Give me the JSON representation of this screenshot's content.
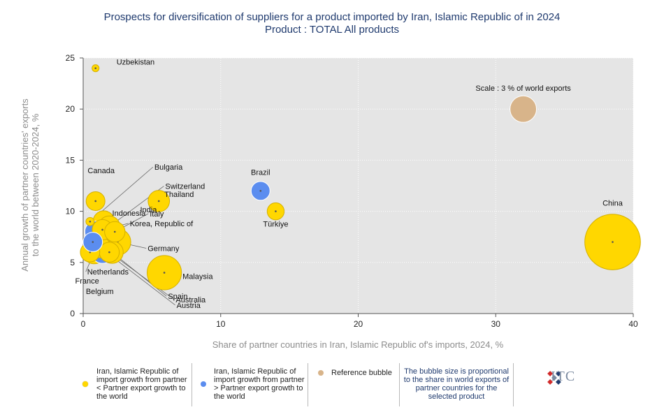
{
  "title": {
    "line1": "Prospects for diversification of suppliers for a product imported by Iran, Islamic Republic of in 2024",
    "line2": "Product : TOTAL All products"
  },
  "chart_data": {
    "type": "scatter",
    "bubble": true,
    "xlabel": "Share of partner countries in Iran, Islamic Republic of's imports, 2024, %",
    "ylabel_line1": "Annual growth of partner countries' exports",
    "ylabel_line2": "to the world between 2020-2024, %",
    "xlim": [
      0,
      40
    ],
    "ylim": [
      0,
      25
    ],
    "x_ticks": [
      0,
      10,
      20,
      30,
      40
    ],
    "y_ticks": [
      0,
      5,
      10,
      15,
      20,
      25
    ],
    "plot_background": "#e5e5e5",
    "grid": true,
    "colors": {
      "yellow": "#ffd700",
      "blue": "#5b8def",
      "reference": "#d8b48a"
    },
    "points": [
      {
        "label": "Uzbekistan",
        "x": 0.9,
        "y": 24,
        "size": 0.05,
        "color": "yellow"
      },
      {
        "label": "China",
        "x": 38.5,
        "y": 7,
        "size": 16,
        "color": "yellow"
      },
      {
        "label": "Brazil",
        "x": 12.9,
        "y": 12,
        "size": 1.3,
        "color": "blue"
      },
      {
        "label": "Türkiye",
        "x": 14,
        "y": 10,
        "size": 1.0,
        "color": "yellow"
      },
      {
        "label": "Malaysia",
        "x": 5.9,
        "y": 4,
        "size": 5.5,
        "color": "yellow"
      },
      {
        "label": "Thailand",
        "x": 5.5,
        "y": 11,
        "size": 1.8,
        "color": "yellow"
      },
      {
        "label": "Canada",
        "x": 0.9,
        "y": 11,
        "size": 1.3,
        "color": "yellow"
      },
      {
        "label": "India",
        "x": 1.5,
        "y": 9,
        "size": 1.8,
        "color": "yellow"
      },
      {
        "label": "Bulgaria",
        "x": 0.5,
        "y": 9,
        "size": 0.1,
        "color": "yellow"
      },
      {
        "label": "Switzerland",
        "x": 1.9,
        "y": 8.5,
        "size": 1.8,
        "color": "yellow"
      },
      {
        "label": "Indonesia",
        "x": 1.4,
        "y": 8.2,
        "size": 1.6,
        "color": "yellow"
      },
      {
        "label": "Italy",
        "x": 2.3,
        "y": 8,
        "size": 1.6,
        "color": "yellow"
      },
      {
        "label": "Korea, Republic of",
        "x": 0.9,
        "y": 8,
        "size": 1.8,
        "color": "blue"
      },
      {
        "label": "Germany",
        "x": 2.5,
        "y": 7,
        "size": 3.0,
        "color": "yellow"
      },
      {
        "label": "Netherlands",
        "x": 0.8,
        "y": 6,
        "size": 2.2,
        "color": "yellow"
      },
      {
        "label": "France",
        "x": 1.4,
        "y": 6,
        "size": 2.0,
        "color": "blue"
      },
      {
        "label": "Belgium",
        "x": 0.5,
        "y": 6,
        "size": 1.4,
        "color": "yellow"
      },
      {
        "label": "Spain",
        "x": 2.1,
        "y": 6,
        "size": 2.0,
        "color": "yellow"
      },
      {
        "label": "Australia",
        "x": 1.9,
        "y": 6,
        "size": 1.5,
        "color": "yellow"
      },
      {
        "label": "Austria",
        "x": 1.2,
        "y": 6.5,
        "size": 1.8,
        "color": "yellow"
      },
      {
        "label": "",
        "x": 0.7,
        "y": 7,
        "size": 1.4,
        "color": "blue"
      }
    ],
    "reference_bubble": {
      "label": "Scale : 3 % of world exports",
      "x": 32,
      "y": 20,
      "size": 3,
      "color": "reference"
    }
  },
  "legend": {
    "item1": "Iran, Islamic Republic of import growth from partner < Partner export growth to the world",
    "item2": "Iran, Islamic Republic of import growth from partner > Partner export growth to the world",
    "item3": "Reference bubble",
    "item4": "The bubble size is proportional to the share in world exports of partner countries for the selected product",
    "logo_text": "ITC"
  }
}
